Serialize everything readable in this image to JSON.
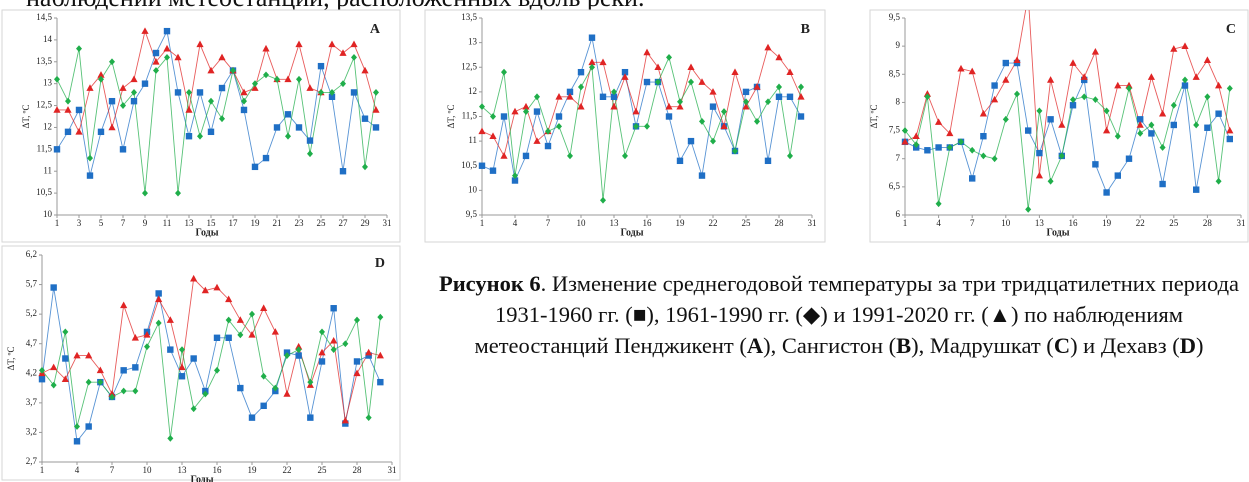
{
  "text_top": "наблюдений метеостанций, расположенных вдоль реки.",
  "caption": [
    {
      "text": "Рисунок 6",
      "bold": true
    },
    {
      "text": ". Изменение среднегодовой температуры за три тридцатилетних периода 1931-1960 гг. (■), 1961-1990 гг. (◆) и 1991-2020 гг. (▲) по наблюдениям метеостанций Пенджикент (",
      "bold": false
    },
    {
      "text": "A",
      "bold": true
    },
    {
      "text": "), Сангистон (",
      "bold": false
    },
    {
      "text": "B",
      "bold": true
    },
    {
      "text": "), Мадрушкат (",
      "bold": false
    },
    {
      "text": "C",
      "bold": true
    },
    {
      "text": ") и Дехавз (",
      "bold": false
    },
    {
      "text": "D",
      "bold": true
    },
    {
      "text": ")",
      "bold": false
    }
  ],
  "chart_data": [
    {
      "type": "line",
      "label": "A",
      "xlabel": "Годы",
      "ylabel": "ΔT, ºC",
      "x": [
        1,
        2,
        3,
        4,
        5,
        6,
        7,
        8,
        9,
        10,
        11,
        12,
        13,
        14,
        15,
        16,
        17,
        18,
        19,
        20,
        21,
        22,
        23,
        24,
        25,
        26,
        27,
        28,
        29,
        30
      ],
      "xlim": [
        1,
        31
      ],
      "xticks": [
        1,
        3,
        5,
        7,
        9,
        11,
        13,
        15,
        17,
        19,
        21,
        23,
        25,
        27,
        29,
        31
      ],
      "ylim": [
        10,
        14.5
      ],
      "yticks": [
        10,
        {
          "value": 10.5,
          "label": "10,5"
        },
        11,
        {
          "value": 11.5,
          "label": "11,5"
        },
        12,
        {
          "value": 12.5,
          "label": "12,5"
        },
        13,
        {
          "value": 13.5,
          "label": "13,5"
        },
        14,
        {
          "value": 14.5,
          "label": "14,5"
        }
      ],
      "series": [
        {
          "color": "#1f6fc5",
          "marker": "square",
          "values": [
            11.5,
            11.9,
            12.4,
            10.9,
            11.9,
            12.6,
            11.5,
            12.6,
            13.0,
            13.7,
            14.2,
            12.8,
            11.8,
            12.8,
            11.9,
            12.9,
            13.3,
            12.4,
            11.1,
            11.3,
            12.0,
            12.3,
            12.0,
            11.7,
            13.4,
            12.7,
            11.0,
            12.8,
            12.2,
            12.0
          ]
        },
        {
          "color": "#e02424",
          "marker": "triangle",
          "values": [
            12.4,
            12.4,
            11.9,
            12.9,
            13.2,
            12.0,
            12.9,
            13.1,
            14.2,
            13.5,
            13.8,
            13.6,
            12.4,
            13.9,
            13.3,
            13.6,
            13.3,
            12.8,
            12.9,
            13.8,
            13.1,
            13.1,
            13.9,
            12.9,
            12.8,
            13.9,
            13.7,
            13.9,
            13.3,
            12.4
          ]
        },
        {
          "color": "#1fae4a",
          "marker": "diamond",
          "values": [
            13.1,
            12.6,
            13.8,
            11.3,
            13.1,
            13.5,
            12.5,
            12.8,
            10.5,
            13.3,
            13.6,
            10.5,
            12.8,
            11.8,
            12.6,
            12.2,
            13.3,
            12.6,
            13.0,
            13.2,
            13.1,
            11.8,
            13.1,
            11.4,
            12.8,
            12.8,
            13.0,
            13.6,
            11.1,
            12.8
          ]
        }
      ]
    },
    {
      "type": "line",
      "label": "B",
      "xlabel": "Годы",
      "ylabel": "ΔT, ºC",
      "x": [
        1,
        2,
        3,
        4,
        5,
        6,
        7,
        8,
        9,
        10,
        11,
        12,
        13,
        14,
        15,
        16,
        17,
        18,
        19,
        20,
        21,
        22,
        23,
        24,
        25,
        26,
        27,
        28,
        29,
        30
      ],
      "xlim": [
        1,
        31
      ],
      "xticks": [
        1,
        4,
        7,
        10,
        13,
        16,
        19,
        22,
        25,
        28,
        31
      ],
      "ylim": [
        9.5,
        13.5
      ],
      "yticks": [
        {
          "value": 9.5,
          "label": "9,5"
        },
        10,
        {
          "value": 10.5,
          "label": "10,5"
        },
        11,
        {
          "value": 11.5,
          "label": "11,5"
        },
        12,
        {
          "value": 12.5,
          "label": "12,5"
        },
        13,
        {
          "value": 13.5,
          "label": "13,5"
        }
      ],
      "series": [
        {
          "color": "#1f6fc5",
          "marker": "square",
          "values": [
            10.5,
            10.4,
            11.5,
            10.2,
            10.7,
            11.6,
            10.9,
            11.5,
            12.0,
            12.4,
            13.1,
            11.9,
            11.9,
            12.4,
            11.3,
            12.2,
            12.2,
            11.5,
            10.6,
            11.0,
            10.3,
            11.7,
            11.3,
            10.8,
            12.0,
            12.1,
            10.6,
            11.9,
            11.9,
            11.5
          ]
        },
        {
          "color": "#e02424",
          "marker": "triangle",
          "values": [
            11.2,
            11.1,
            10.7,
            11.6,
            11.7,
            11.0,
            11.2,
            11.9,
            11.9,
            11.7,
            12.6,
            12.6,
            11.7,
            12.3,
            11.6,
            12.8,
            12.5,
            11.7,
            11.7,
            12.5,
            12.2,
            12.0,
            11.3,
            12.4,
            11.7,
            12.1,
            12.9,
            12.7,
            12.4,
            11.9
          ]
        },
        {
          "color": "#1fae4a",
          "marker": "diamond",
          "values": [
            11.7,
            11.5,
            12.4,
            10.3,
            11.6,
            11.9,
            11.2,
            11.3,
            10.7,
            12.1,
            12.5,
            9.8,
            12.0,
            10.7,
            11.3,
            11.3,
            12.2,
            12.7,
            11.8,
            12.2,
            11.4,
            11.0,
            11.6,
            10.8,
            11.8,
            11.4,
            11.8,
            12.1,
            10.7,
            12.1
          ]
        }
      ]
    },
    {
      "type": "line",
      "label": "C",
      "xlabel": "Годы",
      "ylabel": "ΔT, ºC",
      "x": [
        1,
        2,
        3,
        4,
        5,
        6,
        7,
        8,
        9,
        10,
        11,
        12,
        13,
        14,
        15,
        16,
        17,
        18,
        19,
        20,
        21,
        22,
        23,
        24,
        25,
        26,
        27,
        28,
        29,
        30
      ],
      "xlim": [
        1,
        31
      ],
      "xticks": [
        1,
        4,
        7,
        10,
        13,
        16,
        19,
        22,
        25,
        28,
        31
      ],
      "ylim": [
        6,
        9.5
      ],
      "yticks": [
        6,
        {
          "value": 6.5,
          "label": "6,5"
        },
        7,
        {
          "value": 7.5,
          "label": "7,5"
        },
        8,
        {
          "value": 8.5,
          "label": "8,5"
        },
        9,
        {
          "value": 9.5,
          "label": "9,5"
        }
      ],
      "series": [
        {
          "color": "#1f6fc5",
          "marker": "square",
          "values": [
            7.3,
            7.2,
            7.15,
            7.2,
            7.2,
            7.3,
            6.65,
            7.4,
            8.3,
            8.7,
            8.7,
            7.5,
            7.1,
            7.7,
            7.05,
            7.95,
            8.4,
            6.9,
            6.4,
            6.7,
            7.0,
            7.7,
            7.45,
            6.55,
            7.6,
            8.3,
            6.45,
            7.55,
            7.8,
            7.35
          ]
        },
        {
          "color": "#e02424",
          "marker": "triangle",
          "values": [
            7.3,
            7.4,
            8.15,
            7.65,
            7.45,
            8.6,
            8.55,
            7.8,
            8.05,
            8.4,
            8.75,
            9.9,
            6.7,
            8.4,
            7.6,
            8.7,
            8.45,
            8.9,
            7.5,
            8.3,
            8.3,
            7.6,
            8.45,
            7.8,
            8.95,
            9.0,
            8.45,
            8.75,
            8.3,
            7.5
          ]
        },
        {
          "color": "#1fae4a",
          "marker": "diamond",
          "values": [
            7.5,
            7.25,
            8.1,
            6.2,
            7.2,
            7.3,
            7.15,
            7.05,
            7.0,
            7.7,
            8.15,
            6.1,
            7.85,
            6.6,
            7.05,
            8.05,
            8.1,
            8.05,
            7.85,
            7.4,
            8.25,
            7.45,
            7.6,
            7.2,
            7.95,
            8.4,
            7.6,
            8.1,
            6.6,
            8.25
          ]
        }
      ]
    },
    {
      "type": "line",
      "label": "D",
      "xlabel": "Годы",
      "ylabel": "ΔT, ºC",
      "x": [
        1,
        2,
        3,
        4,
        5,
        6,
        7,
        8,
        9,
        10,
        11,
        12,
        13,
        14,
        15,
        16,
        17,
        18,
        19,
        20,
        21,
        22,
        23,
        24,
        25,
        26,
        27,
        28,
        29,
        30
      ],
      "xlim": [
        1,
        31
      ],
      "xticks": [
        1,
        4,
        7,
        10,
        13,
        16,
        19,
        22,
        25,
        28,
        31
      ],
      "ylim": [
        2.7,
        6.2
      ],
      "yticks": [
        {
          "value": 2.7,
          "label": "2,7"
        },
        {
          "value": 3.2,
          "label": "3,2"
        },
        {
          "value": 3.7,
          "label": "3,7"
        },
        {
          "value": 4.2,
          "label": "4,2"
        },
        {
          "value": 4.7,
          "label": "4,7"
        },
        {
          "value": 5.2,
          "label": "5,2"
        },
        {
          "value": 5.7,
          "label": "5,7"
        },
        {
          "value": 6.2,
          "label": "6,2"
        }
      ],
      "series": [
        {
          "color": "#1f6fc5",
          "marker": "square",
          "values": [
            4.1,
            5.65,
            4.45,
            3.05,
            3.3,
            4.05,
            3.8,
            4.25,
            4.3,
            4.9,
            5.55,
            4.6,
            4.15,
            4.45,
            3.9,
            4.8,
            4.8,
            3.95,
            3.45,
            3.65,
            3.9,
            4.55,
            4.5,
            3.45,
            4.4,
            5.3,
            3.35,
            4.4,
            4.5,
            4.05
          ]
        },
        {
          "color": "#e02424",
          "marker": "triangle",
          "values": [
            4.2,
            4.3,
            4.1,
            4.5,
            4.5,
            4.25,
            3.85,
            5.35,
            4.8,
            4.85,
            5.45,
            5.1,
            4.3,
            5.8,
            5.6,
            5.65,
            5.45,
            5.1,
            4.85,
            5.3,
            4.9,
            3.85,
            4.65,
            4.0,
            4.55,
            4.75,
            3.4,
            4.2,
            4.55,
            4.5
          ]
        },
        {
          "color": "#1fae4a",
          "marker": "diamond",
          "values": [
            4.25,
            4.0,
            4.9,
            3.3,
            4.05,
            4.05,
            3.8,
            3.9,
            3.9,
            4.65,
            5.05,
            3.1,
            4.6,
            3.6,
            3.85,
            4.25,
            5.1,
            4.85,
            5.2,
            4.15,
            3.95,
            4.5,
            4.6,
            4.05,
            4.9,
            4.6,
            4.7,
            5.1,
            3.45,
            5.15
          ]
        }
      ]
    }
  ]
}
